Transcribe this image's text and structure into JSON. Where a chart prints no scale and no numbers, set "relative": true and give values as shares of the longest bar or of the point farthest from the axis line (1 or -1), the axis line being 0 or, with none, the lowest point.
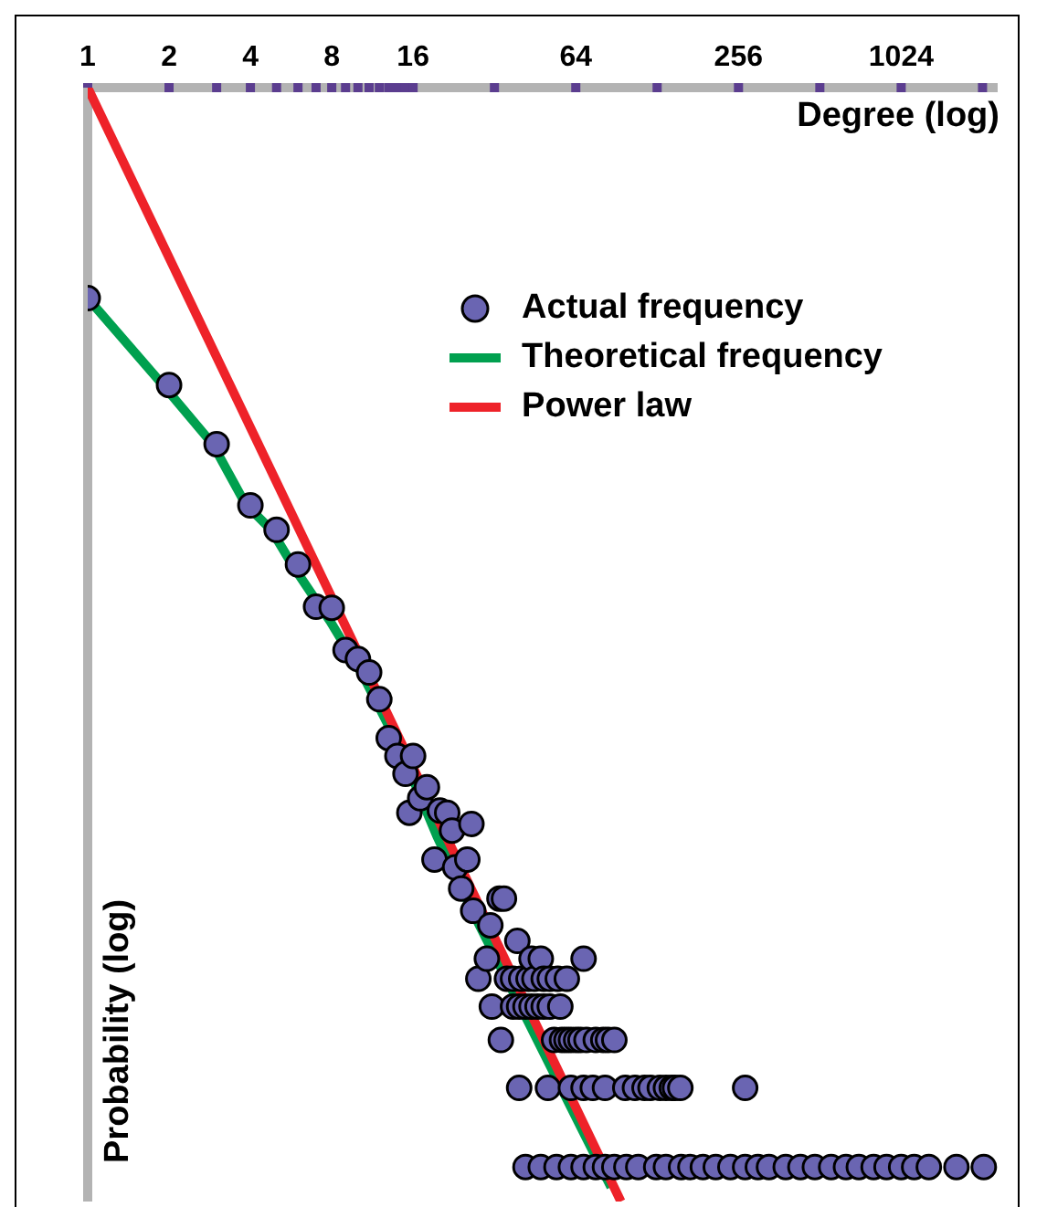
{
  "chart_data": {
    "type": "scatter",
    "xlabel": "Degree (log)",
    "ylabel": "Probability (log)",
    "log": "x",
    "relative": true,
    "grid": false,
    "legend": "top right",
    "xlim": [
      1,
      2330
    ],
    "xticks": [
      1,
      2,
      {
        "value": 3,
        "label": null
      },
      4,
      {
        "value": 5,
        "label": null
      },
      {
        "value": 6,
        "label": null
      },
      {
        "value": 7,
        "label": null
      },
      8,
      {
        "value": 9,
        "label": null
      },
      {
        "value": 10,
        "label": null
      },
      {
        "value": 11,
        "label": null
      },
      {
        "value": 12,
        "label": null
      },
      {
        "value": 13,
        "label": null
      },
      {
        "value": 14,
        "label": null
      },
      {
        "value": 15,
        "label": null
      },
      16,
      {
        "value": 32,
        "label": null
      },
      64,
      {
        "value": 128,
        "label": null
      },
      256,
      {
        "value": 512,
        "label": null
      },
      1024,
      {
        "value": 2048,
        "label": null
      }
    ],
    "series": [
      {
        "name": "Actual frequency",
        "marker": "circle",
        "color": "#6a65b2",
        "x": [
          1,
          2,
          3,
          4,
          5,
          6,
          7,
          8,
          9,
          10,
          11,
          12,
          13,
          14,
          15,
          15.5,
          16,
          17,
          18,
          19.2,
          20.1,
          21.4,
          22.3,
          22.9,
          24.1,
          25.4,
          26.3,
          26.7,
          27.9,
          30.0,
          30.9,
          31.3,
          33.4,
          33.8,
          34.7,
          35.6,
          37.5,
          37.5,
          38.9,
          39.5,
          39.5,
          40.2,
          41.7,
          41.7,
          42.8,
          43.9,
          43.9,
          45.0,
          46.2,
          47.5,
          47.5,
          48.7,
          48.7,
          50.5,
          51.3,
          51.3,
          53.2,
          54.3,
          54.9,
          56.1,
          56.9,
          59.1,
          59.3,
          61.4,
          61.4,
          61.4,
          64.2,
          66.6,
          68.4,
          68.4,
          68.4,
          70.1,
          74,
          75.9,
          75.9,
          80.9,
          82.1,
          82.1,
          84.2,
          88.9,
          88.9,
          97.6,
          98.5,
          106,
          109,
          115,
          121,
          127,
          131,
          138,
          138,
          145,
          149,
          156,
          157,
          170,
          189,
          211,
          239,
          271,
          271,
          302,
          332,
          383,
          434,
          491,
          564,
          640,
          714,
          810,
          904,
          1024,
          1144,
          1296,
          1640,
          2070
        ],
        "values": [
          -0.189,
          -0.267,
          -0.32,
          -0.375,
          -0.397,
          -0.428,
          -0.466,
          -0.467,
          -0.505,
          -0.513,
          -0.525,
          -0.549,
          -0.584,
          -0.6,
          -0.616,
          -0.651,
          -0.6,
          -0.638,
          -0.628,
          -0.693,
          -0.649,
          -0.651,
          -0.667,
          -0.7,
          -0.719,
          -0.693,
          -0.661,
          -0.739,
          -0.8,
          -0.782,
          -0.752,
          -0.825,
          -0.728,
          -0.855,
          -0.728,
          -0.8,
          -0.8,
          -0.825,
          -0.766,
          -0.825,
          -0.898,
          -0.8,
          -0.825,
          -0.969,
          -0.8,
          -0.782,
          -0.825,
          -0.8,
          -0.825,
          -0.782,
          -0.969,
          -0.8,
          -0.825,
          -0.898,
          -0.8,
          -0.825,
          -0.855,
          -0.969,
          -0.8,
          -0.825,
          -0.855,
          -0.855,
          -0.8,
          -0.855,
          -0.898,
          -0.969,
          -0.855,
          -0.855,
          -0.782,
          -0.898,
          -0.969,
          -0.855,
          -0.898,
          -0.855,
          -0.969,
          -0.855,
          -0.898,
          -0.969,
          -0.855,
          -0.855,
          -0.969,
          -0.898,
          -0.969,
          -0.898,
          -0.969,
          -0.898,
          -0.898,
          -0.969,
          -0.898,
          -0.898,
          -0.969,
          -0.898,
          -0.898,
          -0.898,
          -0.969,
          -0.969,
          -0.969,
          -0.969,
          -0.969,
          -0.898,
          -0.969,
          -0.969,
          -0.969,
          -0.969,
          -0.969,
          -0.969,
          -0.969,
          -0.969,
          -0.969,
          -0.969,
          -0.969,
          -0.969,
          -0.969,
          -0.969,
          -0.969,
          -0.969
        ]
      },
      {
        "name": "Theoretical frequency",
        "type": "line",
        "line_style": "solid",
        "color": "#00a04f",
        "x": [
          1,
          1.9,
          2.9,
          3.84,
          4.78,
          5.77,
          7.89,
          10.45,
          14.3,
          19.6,
          26.7,
          42.7,
          68.3,
          86.4
        ],
        "values": [
          -0.189,
          -0.267,
          -0.32,
          -0.374,
          -0.397,
          -0.43,
          -0.479,
          -0.528,
          -0.593,
          -0.672,
          -0.741,
          -0.839,
          -0.938,
          -0.987
        ]
      },
      {
        "name": "Power law",
        "type": "line",
        "line_style": "solid",
        "color": "#ee2229",
        "x": [
          1,
          94
        ],
        "values": [
          0,
          -1
        ]
      }
    ]
  }
}
